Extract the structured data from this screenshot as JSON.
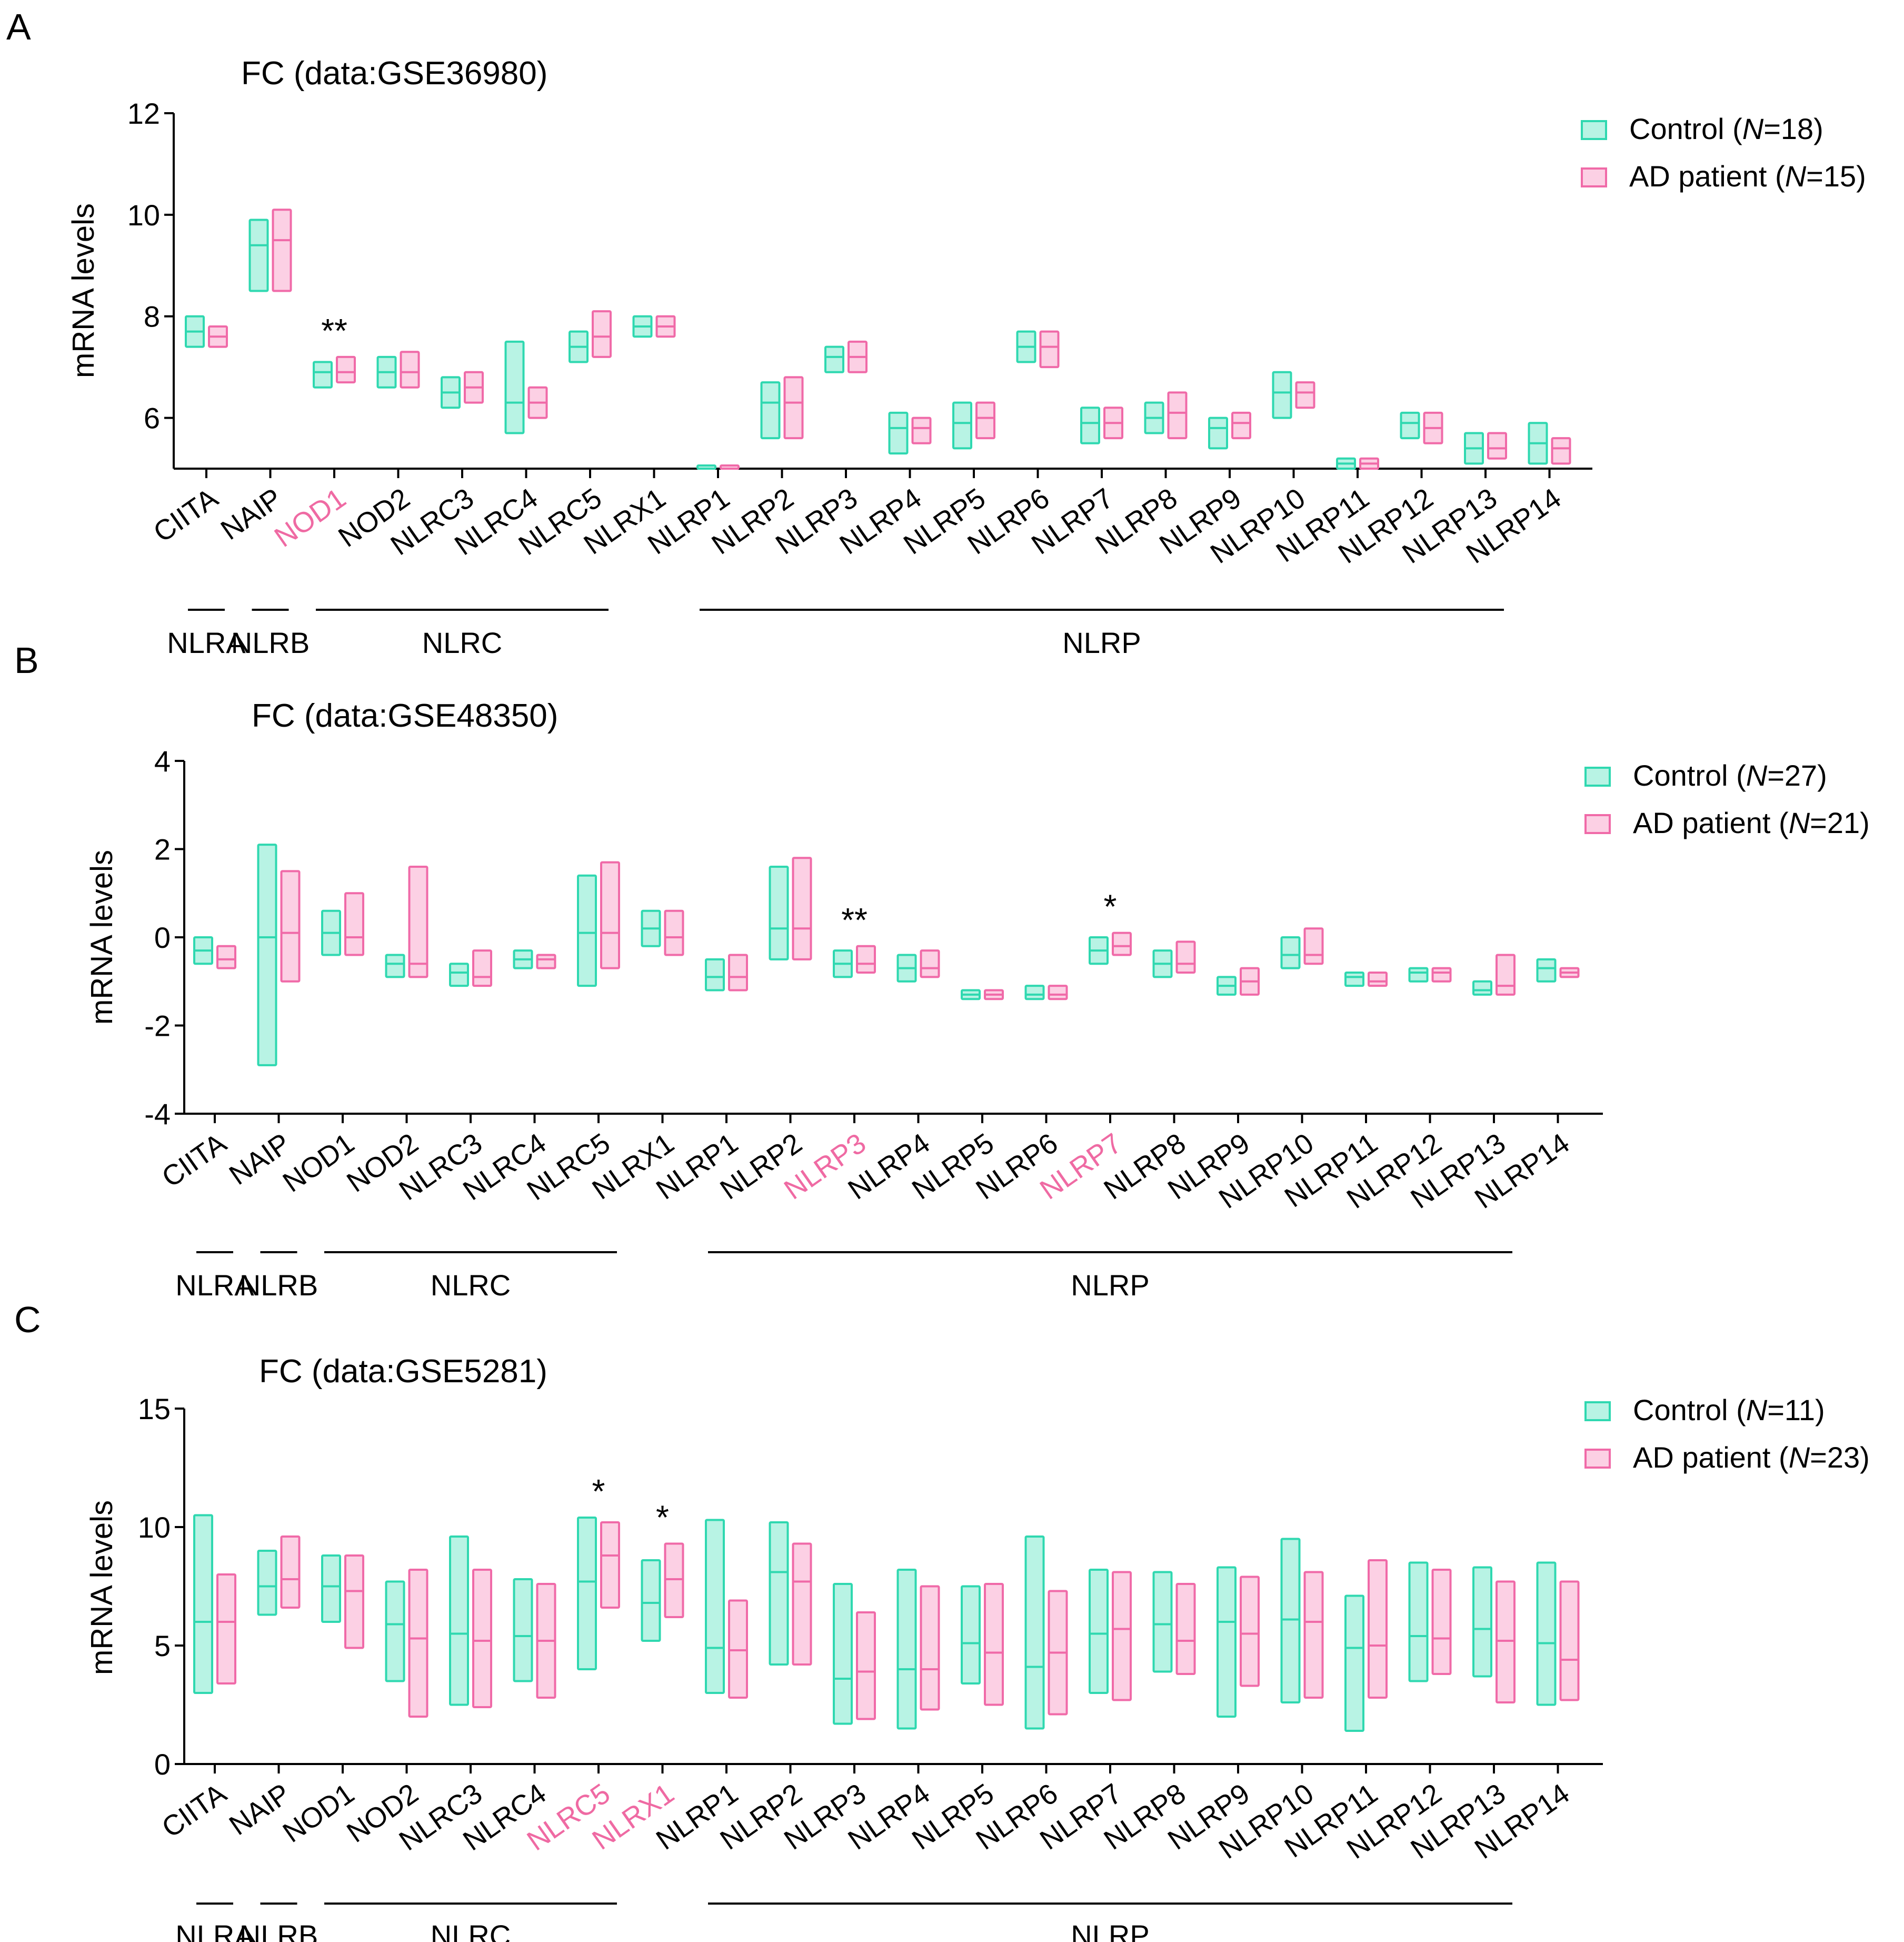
{
  "colors": {
    "control_stroke": "#2fd8b0",
    "control_fill": "#b8f3e4",
    "ad_stroke": "#f06aa8",
    "ad_fill": "#fcd0e4",
    "highlight": "#ef6aa3"
  },
  "families": [
    {
      "label": "NLRA",
      "from": 0,
      "to": 0
    },
    {
      "label": "NLRB",
      "from": 1,
      "to": 1
    },
    {
      "label": "NLRC",
      "from": 2,
      "to": 6
    },
    {
      "label": "NLRP",
      "from": 8,
      "to": 20
    }
  ],
  "chart_data": [
    {
      "panel": "A",
      "type": "box",
      "title": "FC (data:GSE36980)",
      "ylabel": "mRNA levels",
      "ylim": [
        5,
        12
      ],
      "yticks": [
        "6",
        "8",
        "10",
        "12"
      ],
      "categories": [
        "CIITA",
        "NAIP",
        "NOD1",
        "NOD2",
        "NLRC3",
        "NLRC4",
        "NLRC5",
        "NLRX1",
        "NLRP1",
        "NLRP2",
        "NLRP3",
        "NLRP4",
        "NLRP5",
        "NLRP6",
        "NLRP7",
        "NLRP8",
        "NLRP9",
        "NLRP10",
        "NLRP11",
        "NLRP12",
        "NLRP13",
        "NLRP14"
      ],
      "highlighted": [
        "NOD1"
      ],
      "annotations": [
        {
          "category": "NOD1",
          "text": "**"
        }
      ],
      "legend": [
        {
          "label": "Control (",
          "n_label": "N",
          "n_value": "=18)"
        },
        {
          "label": "AD patient (",
          "n_label": "N",
          "n_value": "=15)"
        }
      ],
      "series": [
        {
          "name": "Control",
          "boxes": [
            [
              7.4,
              7.7,
              8.0
            ],
            [
              8.5,
              9.4,
              9.9
            ],
            [
              6.6,
              6.9,
              7.1
            ],
            [
              6.6,
              6.9,
              7.2
            ],
            [
              6.2,
              6.5,
              6.8
            ],
            [
              5.7,
              6.3,
              7.5
            ],
            [
              7.1,
              7.4,
              7.7
            ],
            [
              7.6,
              7.8,
              8.0
            ],
            [
              5.0,
              5.0,
              5.0
            ],
            [
              5.6,
              6.3,
              6.7
            ],
            [
              6.9,
              7.2,
              7.4
            ],
            [
              5.3,
              5.8,
              6.1
            ],
            [
              5.4,
              5.9,
              6.3
            ],
            [
              7.1,
              7.4,
              7.7
            ],
            [
              5.5,
              5.9,
              6.2
            ],
            [
              5.7,
              6.0,
              6.3
            ],
            [
              5.4,
              5.8,
              6.0
            ],
            [
              6.0,
              6.5,
              6.9
            ],
            [
              5.0,
              5.1,
              5.2
            ],
            [
              5.6,
              5.9,
              6.1
            ],
            [
              5.1,
              5.4,
              5.7
            ],
            [
              5.1,
              5.5,
              5.9
            ]
          ]
        },
        {
          "name": "AD patient",
          "boxes": [
            [
              7.4,
              7.6,
              7.8
            ],
            [
              8.5,
              9.5,
              10.1
            ],
            [
              6.7,
              6.9,
              7.2
            ],
            [
              6.6,
              6.9,
              7.3
            ],
            [
              6.3,
              6.6,
              6.9
            ],
            [
              6.0,
              6.3,
              6.6
            ],
            [
              7.2,
              7.6,
              8.1
            ],
            [
              7.6,
              7.8,
              8.0
            ],
            [
              5.0,
              5.0,
              5.0
            ],
            [
              5.6,
              6.3,
              6.8
            ],
            [
              6.9,
              7.2,
              7.5
            ],
            [
              5.5,
              5.8,
              6.0
            ],
            [
              5.6,
              6.0,
              6.3
            ],
            [
              7.0,
              7.4,
              7.7
            ],
            [
              5.6,
              5.9,
              6.2
            ],
            [
              5.6,
              6.1,
              6.5
            ],
            [
              5.6,
              5.9,
              6.1
            ],
            [
              6.2,
              6.5,
              6.7
            ],
            [
              5.0,
              5.1,
              5.2
            ],
            [
              5.5,
              5.8,
              6.1
            ],
            [
              5.2,
              5.4,
              5.7
            ],
            [
              5.1,
              5.4,
              5.6
            ]
          ]
        }
      ]
    },
    {
      "panel": "B",
      "type": "box",
      "title": "FC (data:GSE48350)",
      "ylabel": "mRNA levels",
      "ylim": [
        -4,
        4
      ],
      "yticks": [
        "-4",
        "-2",
        "0",
        "2",
        "4"
      ],
      "categories": [
        "CIITA",
        "NAIP",
        "NOD1",
        "NOD2",
        "NLRC3",
        "NLRC4",
        "NLRC5",
        "NLRX1",
        "NLRP1",
        "NLRP2",
        "NLRP3",
        "NLRP4",
        "NLRP5",
        "NLRP6",
        "NLRP7",
        "NLRP8",
        "NLRP9",
        "NLRP10",
        "NLRP11",
        "NLRP12",
        "NLRP13",
        "NLRP14"
      ],
      "highlighted": [
        "NLRP3",
        "NLRP7"
      ],
      "annotations": [
        {
          "category": "NLRP3",
          "text": "**"
        },
        {
          "category": "NLRP7",
          "text": "*"
        }
      ],
      "legend": [
        {
          "label": "Control (",
          "n_label": "N",
          "n_value": "=27)"
        },
        {
          "label": "AD patient (",
          "n_label": "N",
          "n_value": "=21)"
        }
      ],
      "series": [
        {
          "name": "Control",
          "boxes": [
            [
              -0.6,
              -0.3,
              0.0
            ],
            [
              -2.9,
              0.0,
              2.1
            ],
            [
              -0.4,
              0.1,
              0.6
            ],
            [
              -0.9,
              -0.6,
              -0.4
            ],
            [
              -1.1,
              -0.8,
              -0.6
            ],
            [
              -0.7,
              -0.5,
              -0.3
            ],
            [
              -1.1,
              0.1,
              1.4
            ],
            [
              -0.2,
              0.2,
              0.6
            ],
            [
              -1.2,
              -0.9,
              -0.5
            ],
            [
              -0.5,
              0.2,
              1.6
            ],
            [
              -0.9,
              -0.6,
              -0.3
            ],
            [
              -1.0,
              -0.7,
              -0.4
            ],
            [
              -1.4,
              -1.3,
              -1.2
            ],
            [
              -1.4,
              -1.3,
              -1.1
            ],
            [
              -0.6,
              -0.3,
              0.0
            ],
            [
              -0.9,
              -0.6,
              -0.3
            ],
            [
              -1.3,
              -1.1,
              -0.9
            ],
            [
              -0.7,
              -0.4,
              0.0
            ],
            [
              -1.1,
              -0.9,
              -0.8
            ],
            [
              -1.0,
              -0.8,
              -0.7
            ],
            [
              -1.3,
              -1.2,
              -1.0
            ],
            [
              -1.0,
              -0.7,
              -0.5
            ]
          ]
        },
        {
          "name": "AD patient",
          "boxes": [
            [
              -0.7,
              -0.5,
              -0.2
            ],
            [
              -1.0,
              0.1,
              1.5
            ],
            [
              -0.4,
              0.0,
              1.0
            ],
            [
              -0.9,
              -0.6,
              1.6
            ],
            [
              -1.1,
              -0.9,
              -0.3
            ],
            [
              -0.7,
              -0.5,
              -0.4
            ],
            [
              -0.7,
              0.1,
              1.7
            ],
            [
              -0.4,
              0.0,
              0.6
            ],
            [
              -1.2,
              -0.9,
              -0.4
            ],
            [
              -0.5,
              0.2,
              1.8
            ],
            [
              -0.8,
              -0.6,
              -0.2
            ],
            [
              -0.9,
              -0.7,
              -0.3
            ],
            [
              -1.4,
              -1.3,
              -1.2
            ],
            [
              -1.4,
              -1.3,
              -1.1
            ],
            [
              -0.4,
              -0.2,
              0.1
            ],
            [
              -0.8,
              -0.6,
              -0.1
            ],
            [
              -1.3,
              -1.0,
              -0.7
            ],
            [
              -0.6,
              -0.4,
              0.2
            ],
            [
              -1.1,
              -1.0,
              -0.8
            ],
            [
              -1.0,
              -0.8,
              -0.7
            ],
            [
              -1.3,
              -1.1,
              -0.4
            ],
            [
              -0.9,
              -0.8,
              -0.7
            ]
          ]
        }
      ]
    },
    {
      "panel": "C",
      "type": "box",
      "title": "FC (data:GSE5281)",
      "ylabel": "mRNA levels",
      "ylim": [
        0,
        15
      ],
      "yticks": [
        "0",
        "5",
        "10",
        "15"
      ],
      "categories": [
        "CIITA",
        "NAIP",
        "NOD1",
        "NOD2",
        "NLRC3",
        "NLRC4",
        "NLRC5",
        "NLRX1",
        "NLRP1",
        "NLRP2",
        "NLRP3",
        "NLRP4",
        "NLRP5",
        "NLRP6",
        "NLRP7",
        "NLRP8",
        "NLRP9",
        "NLRP10",
        "NLRP11",
        "NLRP12",
        "NLRP13",
        "NLRP14"
      ],
      "highlighted": [
        "NLRC5",
        "NLRX1"
      ],
      "annotations": [
        {
          "category": "NLRC5",
          "text": "*"
        },
        {
          "category": "NLRX1",
          "text": "*"
        }
      ],
      "legend": [
        {
          "label": "Control (",
          "n_label": "N",
          "n_value": "=11)"
        },
        {
          "label": "AD patient (",
          "n_label": "N",
          "n_value": "=23)"
        }
      ],
      "series": [
        {
          "name": "Control",
          "boxes": [
            [
              3.0,
              6.0,
              10.5
            ],
            [
              6.3,
              7.5,
              9.0
            ],
            [
              6.0,
              7.5,
              8.8
            ],
            [
              3.5,
              5.9,
              7.7
            ],
            [
              2.5,
              5.5,
              9.6
            ],
            [
              3.5,
              5.4,
              7.8
            ],
            [
              4.0,
              7.7,
              10.4
            ],
            [
              5.2,
              6.8,
              8.6
            ],
            [
              3.0,
              4.9,
              10.3
            ],
            [
              4.2,
              8.1,
              10.2
            ],
            [
              1.7,
              3.6,
              7.6
            ],
            [
              1.5,
              4.0,
              8.2
            ],
            [
              3.4,
              5.1,
              7.5
            ],
            [
              1.5,
              4.1,
              9.6
            ],
            [
              3.0,
              5.5,
              8.2
            ],
            [
              3.9,
              5.9,
              8.1
            ],
            [
              2.0,
              6.0,
              8.3
            ],
            [
              2.6,
              6.1,
              9.5
            ],
            [
              1.4,
              4.9,
              7.1
            ],
            [
              3.5,
              5.4,
              8.5
            ],
            [
              3.7,
              5.7,
              8.3
            ],
            [
              2.5,
              5.1,
              8.5
            ]
          ]
        },
        {
          "name": "AD patient",
          "boxes": [
            [
              3.4,
              6.0,
              8.0
            ],
            [
              6.6,
              7.8,
              9.6
            ],
            [
              4.9,
              7.3,
              8.8
            ],
            [
              2.0,
              5.3,
              8.2
            ],
            [
              2.4,
              5.2,
              8.2
            ],
            [
              2.8,
              5.2,
              7.6
            ],
            [
              6.6,
              8.8,
              10.2
            ],
            [
              6.2,
              7.8,
              9.3
            ],
            [
              2.8,
              4.8,
              6.9
            ],
            [
              4.2,
              7.7,
              9.3
            ],
            [
              1.9,
              3.9,
              6.4
            ],
            [
              2.3,
              4.0,
              7.5
            ],
            [
              2.5,
              4.7,
              7.6
            ],
            [
              2.1,
              4.7,
              7.3
            ],
            [
              2.7,
              5.7,
              8.1
            ],
            [
              3.8,
              5.2,
              7.6
            ],
            [
              3.3,
              5.5,
              7.9
            ],
            [
              2.8,
              6.0,
              8.1
            ],
            [
              2.8,
              5.0,
              8.6
            ],
            [
              3.8,
              5.3,
              8.2
            ],
            [
              2.6,
              5.2,
              7.7
            ],
            [
              2.7,
              4.4,
              7.7
            ]
          ]
        }
      ]
    }
  ]
}
